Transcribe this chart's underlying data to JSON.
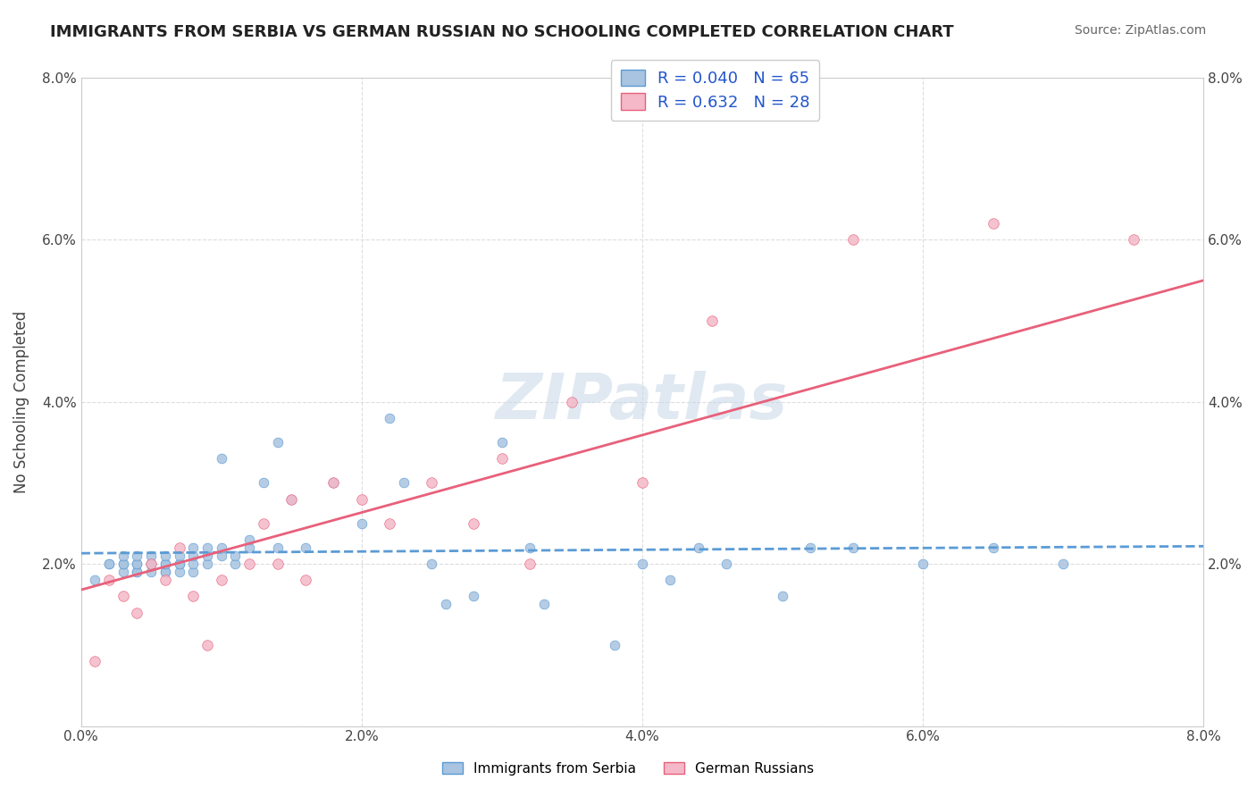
{
  "title": "IMMIGRANTS FROM SERBIA VS GERMAN RUSSIAN NO SCHOOLING COMPLETED CORRELATION CHART",
  "source": "Source: ZipAtlas.com",
  "xlabel": "",
  "ylabel": "No Schooling Completed",
  "legend_series": [
    {
      "label": "Immigrants from Serbia",
      "R": 0.04,
      "N": 65,
      "color": "#a8c4e0",
      "line_color": "#5b9bd5",
      "line_style": "--"
    },
    {
      "label": "German Russians",
      "R": 0.632,
      "N": 28,
      "color": "#f4b8c8",
      "line_color": "#e8607a",
      "line_style": "-"
    }
  ],
  "xlim": [
    0.0,
    0.08
  ],
  "ylim": [
    0.0,
    0.08
  ],
  "xticks": [
    0.0,
    0.02,
    0.04,
    0.06,
    0.08
  ],
  "yticks": [
    0.0,
    0.02,
    0.04,
    0.06,
    0.08
  ],
  "xticklabels": [
    "0.0%",
    "2.0%",
    "4.0%",
    "6.0%",
    "8.0%"
  ],
  "yticklabels": [
    "",
    "2.0%",
    "4.0%",
    "6.0%",
    "8.0%"
  ],
  "watermark": "ZIPatlas",
  "background_color": "#ffffff",
  "grid_color": "#dddddd",
  "serbia_x": [
    0.001,
    0.002,
    0.002,
    0.003,
    0.003,
    0.003,
    0.003,
    0.004,
    0.004,
    0.004,
    0.004,
    0.004,
    0.005,
    0.005,
    0.005,
    0.005,
    0.006,
    0.006,
    0.006,
    0.006,
    0.006,
    0.007,
    0.007,
    0.007,
    0.007,
    0.008,
    0.008,
    0.008,
    0.008,
    0.009,
    0.009,
    0.009,
    0.01,
    0.01,
    0.01,
    0.011,
    0.011,
    0.012,
    0.012,
    0.013,
    0.014,
    0.014,
    0.015,
    0.016,
    0.018,
    0.02,
    0.022,
    0.023,
    0.025,
    0.026,
    0.028,
    0.03,
    0.032,
    0.033,
    0.038,
    0.04,
    0.042,
    0.044,
    0.046,
    0.05,
    0.052,
    0.055,
    0.06,
    0.065,
    0.07
  ],
  "serbia_y": [
    0.018,
    0.02,
    0.02,
    0.019,
    0.02,
    0.02,
    0.021,
    0.019,
    0.019,
    0.02,
    0.02,
    0.021,
    0.019,
    0.02,
    0.02,
    0.021,
    0.019,
    0.019,
    0.02,
    0.02,
    0.021,
    0.019,
    0.02,
    0.02,
    0.021,
    0.019,
    0.02,
    0.021,
    0.022,
    0.02,
    0.021,
    0.022,
    0.021,
    0.022,
    0.033,
    0.02,
    0.021,
    0.022,
    0.023,
    0.03,
    0.022,
    0.035,
    0.028,
    0.022,
    0.03,
    0.025,
    0.038,
    0.03,
    0.02,
    0.015,
    0.016,
    0.035,
    0.022,
    0.015,
    0.01,
    0.02,
    0.018,
    0.022,
    0.02,
    0.016,
    0.022,
    0.022,
    0.02,
    0.022,
    0.02
  ],
  "serbia_sizes": [
    20,
    20,
    20,
    20,
    20,
    20,
    20,
    20,
    20,
    20,
    20,
    20,
    20,
    20,
    20,
    20,
    20,
    20,
    20,
    20,
    20,
    20,
    20,
    20,
    20,
    20,
    20,
    20,
    20,
    20,
    20,
    20,
    20,
    20,
    20,
    20,
    20,
    20,
    20,
    20,
    20,
    20,
    20,
    20,
    20,
    20,
    20,
    20,
    20,
    20,
    20,
    20,
    20,
    20,
    20,
    20,
    20,
    20,
    20,
    20,
    20,
    20,
    20,
    20,
    20
  ],
  "german_x": [
    0.001,
    0.002,
    0.003,
    0.004,
    0.005,
    0.006,
    0.007,
    0.008,
    0.009,
    0.01,
    0.012,
    0.013,
    0.014,
    0.015,
    0.016,
    0.018,
    0.02,
    0.022,
    0.025,
    0.028,
    0.03,
    0.032,
    0.035,
    0.04,
    0.045,
    0.055,
    0.065,
    0.075
  ],
  "german_y": [
    0.008,
    0.018,
    0.016,
    0.014,
    0.02,
    0.018,
    0.022,
    0.016,
    0.01,
    0.018,
    0.02,
    0.025,
    0.02,
    0.028,
    0.018,
    0.03,
    0.028,
    0.025,
    0.03,
    0.025,
    0.033,
    0.02,
    0.04,
    0.03,
    0.05,
    0.06,
    0.062,
    0.06
  ],
  "german_sizes": [
    30,
    30,
    30,
    30,
    30,
    30,
    30,
    30,
    30,
    30,
    30,
    30,
    30,
    30,
    30,
    30,
    30,
    30,
    30,
    30,
    30,
    30,
    30,
    30,
    30,
    30,
    30,
    30
  ]
}
